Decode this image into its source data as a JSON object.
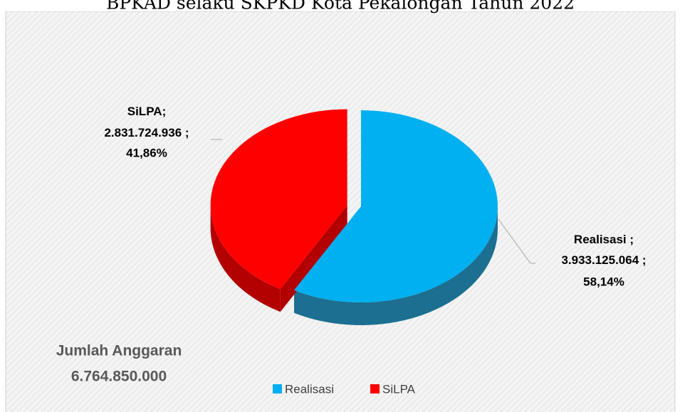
{
  "chart_data": {
    "type": "pie3d",
    "title": "BPKAD selaku SKPKD Kota Pekalongan Tahun 2022",
    "series": [
      {
        "name": "Realisasi",
        "color": "#00b0f0",
        "side_color": "#1c6f91",
        "values": [
          3933125064
        ],
        "value_labels": [
          "3.933.125.064"
        ],
        "percent": 58.14,
        "percent_label": "58,14%"
      },
      {
        "name": "SiLPA",
        "color": "#ff0000",
        "side_color": "#b30000",
        "values": [
          2831724936
        ],
        "value_labels": [
          "2.831.724.936"
        ],
        "percent": 41.86,
        "percent_label": "41,86%",
        "exploded": true
      }
    ],
    "label_separator": ";",
    "annotation": {
      "text": "Jumlah Anggaran",
      "value": 6764850000,
      "label": "6.764.850.000"
    },
    "legend": "bottom"
  }
}
